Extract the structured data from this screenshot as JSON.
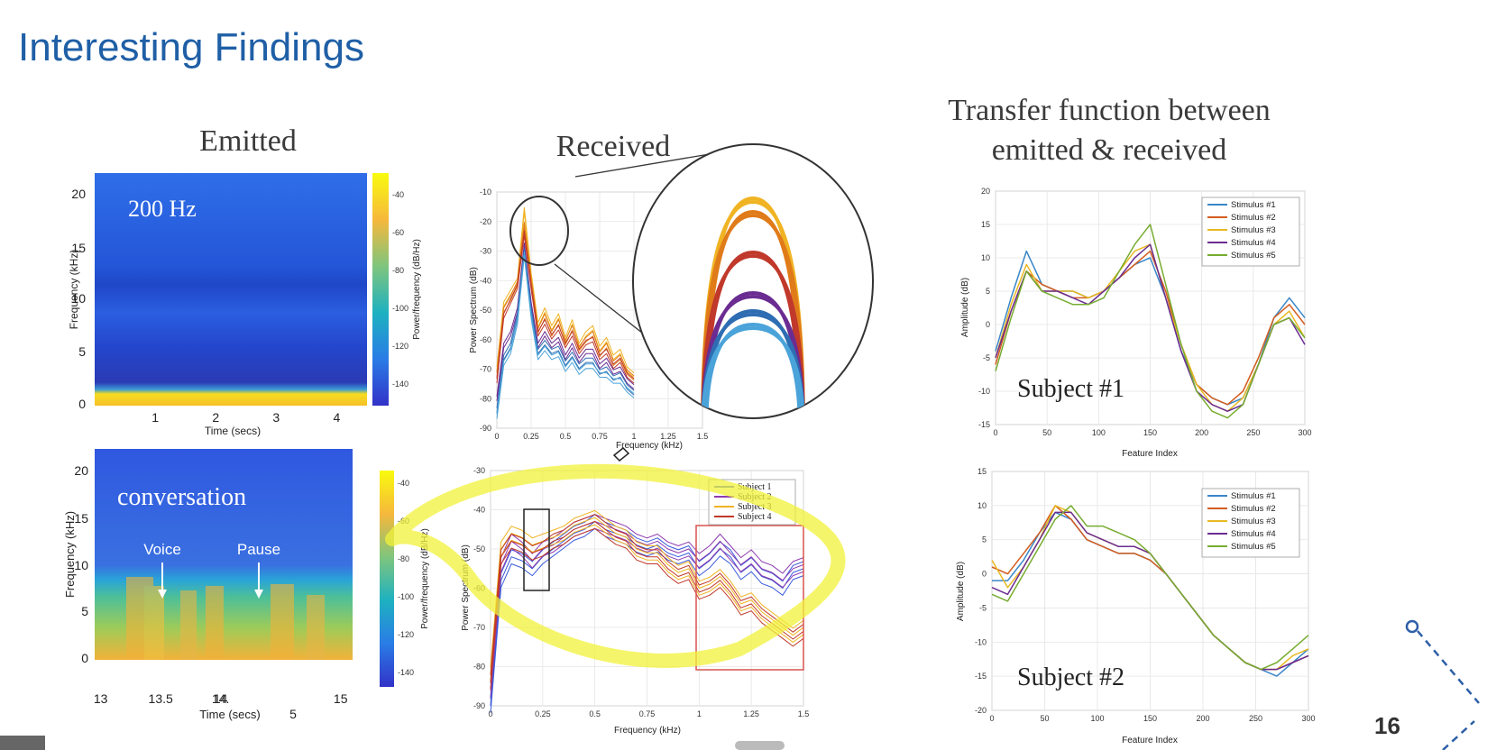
{
  "slide": {
    "title": "Interesting Findings",
    "number": "16"
  },
  "captions": {
    "emitted": "Emitted",
    "received": "Received",
    "transfer_line1": "Transfer function between",
    "transfer_line2": "emitted & received"
  },
  "colors": {
    "title": "#1f5fa6",
    "highlight": "#f2f23a",
    "zoom_box_red": "#d9534f"
  },
  "chart_data": [
    {
      "id": "spectrogram_200hz",
      "type": "heatmap",
      "overlay_label": "200 Hz",
      "xlabel": "Time (secs)",
      "ylabel": "Frequency (kHz)",
      "x_ticks": [
        "1",
        "2",
        "3",
        "4"
      ],
      "y_ticks": [
        "0",
        "5",
        "10",
        "15",
        "20"
      ],
      "colorbar_label": "Power/frequency (dB/Hz)",
      "colorbar_ticks": [
        "-40",
        "-60",
        "-80",
        "-100",
        "-120",
        "-140"
      ],
      "xlim": [
        0,
        4.5
      ],
      "ylim": [
        0,
        22
      ],
      "bands": [
        {
          "from_khz": 0,
          "to_khz": 1.2,
          "level_db": -40
        },
        {
          "from_khz": 1.2,
          "to_khz": 1.8,
          "level_db": -100
        },
        {
          "from_khz": 1.8,
          "to_khz": 10,
          "level_db": -150
        },
        {
          "from_khz": 10,
          "to_khz": 14,
          "level_db": -135
        },
        {
          "from_khz": 14,
          "to_khz": 22,
          "level_db": -125
        }
      ]
    },
    {
      "id": "spectrogram_conversation",
      "type": "heatmap",
      "overlay_label": "conversation",
      "annotations": [
        "Voice",
        "Pause"
      ],
      "xlabel": "Time (secs)",
      "ylabel": "Frequency (kHz)",
      "x_ticks": [
        "13",
        "13.5",
        "14",
        "14.",
        "15"
      ],
      "x_tick_extra": "5",
      "y_ticks": [
        "0",
        "5",
        "10",
        "15",
        "20"
      ],
      "colorbar_label": "Power/frequency (dB/Hz)",
      "colorbar_ticks": [
        "-40",
        "-60",
        "-80",
        "-100",
        "-120",
        "-140"
      ],
      "xlim": [
        12.95,
        15.1
      ],
      "ylim": [
        0,
        22
      ]
    },
    {
      "id": "received_200hz",
      "type": "line",
      "xlabel": "Frequency (kHz)",
      "ylabel": "Power Spectrum (dB)",
      "xlim": [
        0,
        1.5
      ],
      "ylim": [
        -90,
        -10
      ],
      "x_ticks": [
        "0",
        "0.25",
        "0.5",
        "0.75",
        "1",
        "1.25",
        "1.5"
      ],
      "y_ticks": [
        "-10",
        "-20",
        "-30",
        "-40",
        "-50",
        "-60",
        "-70",
        "-80",
        "-90"
      ],
      "x": [
        0,
        0.05,
        0.1,
        0.15,
        0.2,
        0.25,
        0.3,
        0.35,
        0.4,
        0.45,
        0.5,
        0.55,
        0.6,
        0.65,
        0.7,
        0.75,
        0.8,
        0.85,
        0.9,
        0.95,
        1.0
      ],
      "series": [
        {
          "color": "#f0b323",
          "values": [
            -70,
            -48,
            -44,
            -40,
            -16,
            -38,
            -55,
            -50,
            -56,
            -52,
            -60,
            -54,
            -62,
            -58,
            -56,
            -63,
            -60,
            -66,
            -64,
            -70,
            -72
          ]
        },
        {
          "color": "#e07b1a",
          "values": [
            -72,
            -50,
            -46,
            -41,
            -21,
            -40,
            -57,
            -52,
            -58,
            -54,
            -61,
            -56,
            -63,
            -60,
            -58,
            -65,
            -62,
            -68,
            -66,
            -71,
            -73
          ]
        },
        {
          "color": "#c0392b",
          "values": [
            -74,
            -52,
            -47,
            -42,
            -24,
            -42,
            -58,
            -54,
            -59,
            -56,
            -62,
            -58,
            -64,
            -61,
            -60,
            -66,
            -64,
            -69,
            -67,
            -72,
            -74
          ]
        },
        {
          "color": "#6b2c91",
          "values": [
            -80,
            -62,
            -58,
            -50,
            -28,
            -48,
            -62,
            -58,
            -62,
            -60,
            -66,
            -62,
            -67,
            -64,
            -64,
            -69,
            -67,
            -71,
            -70,
            -74,
            -76
          ]
        },
        {
          "color": "#2f6db3",
          "values": [
            -84,
            -66,
            -62,
            -52,
            -30,
            -50,
            -64,
            -61,
            -64,
            -63,
            -68,
            -65,
            -69,
            -67,
            -67,
            -71,
            -70,
            -73,
            -72,
            -76,
            -78
          ]
        },
        {
          "color": "#4aa3d9",
          "values": [
            -86,
            -68,
            -64,
            -54,
            -31,
            -52,
            -66,
            -63,
            -66,
            -65,
            -70,
            -67,
            -71,
            -69,
            -69,
            -72,
            -72,
            -74,
            -74,
            -77,
            -79
          ]
        }
      ]
    },
    {
      "id": "received_conversation",
      "type": "line",
      "xlabel": "Frequency (kHz)",
      "ylabel": "Power Spectrum (dB)",
      "xlim": [
        0,
        1.5
      ],
      "ylim": [
        -90,
        -30
      ],
      "x_ticks": [
        "0",
        "0.25",
        "0.5",
        "0.75",
        "1",
        "1.25",
        "1.5"
      ],
      "y_ticks": [
        "-30",
        "-40",
        "-50",
        "-60",
        "-70",
        "-80",
        "-90"
      ],
      "legend": [
        "Subject 1",
        "Subject 2",
        "Subject 3",
        "Subject 4"
      ],
      "x": [
        0,
        0.05,
        0.1,
        0.15,
        0.2,
        0.25,
        0.3,
        0.35,
        0.4,
        0.45,
        0.5,
        0.55,
        0.6,
        0.65,
        0.7,
        0.75,
        0.8,
        0.85,
        0.9,
        0.95,
        1.0,
        1.05,
        1.1,
        1.15,
        1.2,
        1.25,
        1.3,
        1.35,
        1.4,
        1.45,
        1.5
      ],
      "series": [
        {
          "name": "Subject 1",
          "color": "#3b5bdb",
          "values": [
            -90,
            -58,
            -52,
            -53,
            -55,
            -52,
            -50,
            -48,
            -46,
            -45,
            -43,
            -45,
            -46,
            -47,
            -49,
            -50,
            -49,
            -51,
            -52,
            -51,
            -55,
            -53,
            -50,
            -52,
            -56,
            -54,
            -57,
            -58,
            -60,
            -56,
            -55
          ]
        },
        {
          "name": "Subject 2",
          "color": "#8e3bb0",
          "values": [
            -86,
            -54,
            -48,
            -50,
            -53,
            -50,
            -49,
            -47,
            -45,
            -44,
            -43,
            -44,
            -45,
            -46,
            -48,
            -49,
            -48,
            -50,
            -51,
            -50,
            -53,
            -51,
            -48,
            -51,
            -54,
            -52,
            -55,
            -56,
            -58,
            -55,
            -54
          ]
        },
        {
          "name": "Subject 3",
          "color": "#f0b323",
          "values": [
            -82,
            -50,
            -46,
            -47,
            -49,
            -48,
            -47,
            -46,
            -44,
            -43,
            -42,
            -44,
            -46,
            -47,
            -50,
            -51,
            -51,
            -54,
            -56,
            -55,
            -60,
            -59,
            -57,
            -60,
            -64,
            -63,
            -66,
            -68,
            -70,
            -72,
            -70
          ]
        },
        {
          "name": "Subject 4",
          "color": "#c0392b",
          "values": [
            -84,
            -52,
            -48,
            -49,
            -51,
            -50,
            -48,
            -47,
            -45,
            -44,
            -43,
            -45,
            -47,
            -48,
            -51,
            -52,
            -52,
            -55,
            -57,
            -56,
            -61,
            -60,
            -58,
            -61,
            -65,
            -64,
            -67,
            -69,
            -71,
            -73,
            -71
          ]
        }
      ]
    },
    {
      "id": "transfer_subject1",
      "type": "line",
      "overlay_label": "Subject #1",
      "xlabel": "Feature Index",
      "ylabel": "Amplitude (dB)",
      "xlim": [
        0,
        300
      ],
      "ylim": [
        -15,
        20
      ],
      "x_ticks": [
        "0",
        "50",
        "100",
        "150",
        "200",
        "250",
        "300"
      ],
      "y_ticks": [
        "20",
        "15",
        "10",
        "5",
        "0",
        "-5",
        "-10",
        "-15"
      ],
      "legend": [
        "Stimulus #1",
        "Stimulus #2",
        "Stimulus #3",
        "Stimulus #4",
        "Stimulus #5"
      ],
      "x": [
        0,
        15,
        30,
        45,
        60,
        75,
        90,
        105,
        120,
        135,
        150,
        165,
        180,
        195,
        210,
        225,
        240,
        255,
        270,
        285,
        300
      ],
      "series": [
        {
          "name": "Stimulus #1",
          "color": "#3a86c8",
          "values": [
            -4,
            4,
            11,
            6,
            5,
            5,
            4,
            5,
            7,
            9,
            10,
            4,
            -4,
            -9,
            -11,
            -12,
            -11,
            -6,
            1,
            4,
            1
          ]
        },
        {
          "name": "Stimulus #2",
          "color": "#d45d1e",
          "values": [
            -6,
            2,
            8,
            6,
            5,
            4,
            4,
            5,
            7,
            9,
            11,
            5,
            -3,
            -9,
            -11,
            -12,
            -10,
            -5,
            1,
            3,
            0
          ]
        },
        {
          "name": "Stimulus #3",
          "color": "#e8b923",
          "values": [
            -5,
            3,
            9,
            5,
            5,
            5,
            4,
            5,
            8,
            11,
            12,
            4,
            -3,
            -9,
            -12,
            -13,
            -11,
            -6,
            0,
            2,
            -2
          ]
        },
        {
          "name": "Stimulus #4",
          "color": "#6b2c91",
          "values": [
            -5,
            2,
            8,
            5,
            5,
            4,
            3,
            5,
            7,
            10,
            12,
            4,
            -4,
            -10,
            -12,
            -13,
            -12,
            -6,
            0,
            1,
            -3
          ]
        },
        {
          "name": "Stimulus #5",
          "color": "#77ac30",
          "values": [
            -7,
            1,
            8,
            5,
            4,
            3,
            3,
            4,
            8,
            12,
            15,
            6,
            -3,
            -10,
            -13,
            -14,
            -12,
            -6,
            0,
            1,
            -2
          ]
        }
      ]
    },
    {
      "id": "transfer_subject2",
      "type": "line",
      "overlay_label": "Subject #2",
      "xlabel": "Feature Index",
      "ylabel": "Amplitude (dB)",
      "xlim": [
        0,
        300
      ],
      "ylim": [
        -20,
        15
      ],
      "x_ticks": [
        "0",
        "50",
        "100",
        "150",
        "200",
        "250",
        "300"
      ],
      "y_ticks": [
        "15",
        "10",
        "5",
        "0",
        "-5",
        "-10",
        "-15",
        "-20"
      ],
      "legend": [
        "Stimulus #1",
        "Stimulus #2",
        "Stimulus #3",
        "Stimulus #4",
        "Stimulus #5"
      ],
      "x": [
        0,
        15,
        30,
        45,
        60,
        75,
        90,
        105,
        120,
        135,
        150,
        165,
        180,
        195,
        210,
        225,
        240,
        255,
        270,
        285,
        300
      ],
      "series": [
        {
          "name": "Stimulus #1",
          "color": "#3a86c8",
          "values": [
            -1,
            -1,
            2,
            6,
            9,
            8,
            5,
            4,
            3,
            3,
            2,
            0,
            -3,
            -6,
            -9,
            -11,
            -13,
            -14,
            -15,
            -13,
            -11
          ]
        },
        {
          "name": "Stimulus #2",
          "color": "#d45d1e",
          "values": [
            1,
            0,
            3,
            6,
            10,
            8,
            5,
            4,
            3,
            3,
            2,
            0,
            -3,
            -6,
            -9,
            -11,
            -13,
            -14,
            -14,
            -13,
            -12
          ]
        },
        {
          "name": "Stimulus #3",
          "color": "#e8b923",
          "values": [
            2,
            -2,
            1,
            5,
            10,
            9,
            6,
            5,
            4,
            4,
            3,
            0,
            -3,
            -6,
            -9,
            -11,
            -13,
            -14,
            -14,
            -12,
            -11
          ]
        },
        {
          "name": "Stimulus #4",
          "color": "#6b2c91",
          "values": [
            -2,
            -3,
            1,
            5,
            9,
            9,
            6,
            5,
            4,
            4,
            3,
            0,
            -3,
            -6,
            -9,
            -11,
            -13,
            -14,
            -14,
            -13,
            -12
          ]
        },
        {
          "name": "Stimulus #5",
          "color": "#77ac30",
          "values": [
            -3,
            -4,
            0,
            4,
            8,
            10,
            7,
            7,
            6,
            5,
            3,
            0,
            -3,
            -6,
            -9,
            -11,
            -13,
            -14,
            -13,
            -11,
            -9
          ]
        }
      ]
    }
  ]
}
